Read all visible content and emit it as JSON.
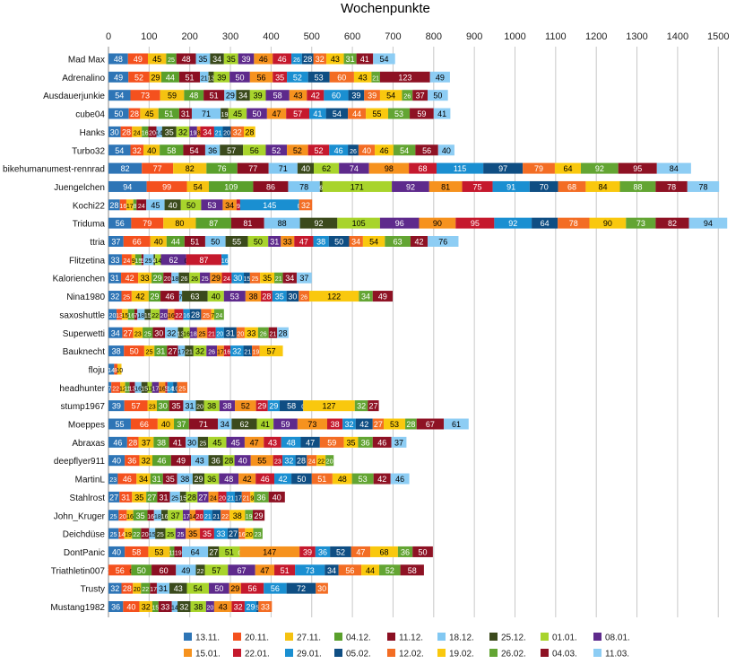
{
  "chart_data": {
    "type": "bar",
    "orientation": "horizontal",
    "stacked": true,
    "title": "Wochenpunkte",
    "xlabel": "",
    "ylabel": "",
    "xlim": [
      0,
      1550
    ],
    "xticks": [
      0,
      100,
      200,
      300,
      400,
      500,
      600,
      700,
      800,
      900,
      1000,
      1100,
      1200,
      1300,
      1400,
      1500
    ],
    "grid": true,
    "legend_position": "bottom",
    "series": [
      {
        "name": "13.11.",
        "color": "#2e75b6"
      },
      {
        "name": "20.11.",
        "color": "#f4511e"
      },
      {
        "name": "27.11.",
        "color": "#f5c211"
      },
      {
        "name": "04.12.",
        "color": "#5aa02c"
      },
      {
        "name": "11.12.",
        "color": "#8b0f22"
      },
      {
        "name": "18.12.",
        "color": "#82c8f2"
      },
      {
        "name": "25.12.",
        "color": "#3b4a1c"
      },
      {
        "name": "01.01.",
        "color": "#a8d42c"
      },
      {
        "name": "08.01.",
        "color": "#5e2a8c"
      },
      {
        "name": "15.01.",
        "color": "#f6921e"
      },
      {
        "name": "22.01.",
        "color": "#c5192d"
      },
      {
        "name": "29.01.",
        "color": "#1a8fd1"
      },
      {
        "name": "05.02.",
        "color": "#0f4e83"
      },
      {
        "name": "12.02.",
        "color": "#f36d24"
      },
      {
        "name": "19.02.",
        "color": "#f9c80e"
      },
      {
        "name": "26.02.",
        "color": "#63a533"
      },
      {
        "name": "04.03.",
        "color": "#8e1224"
      },
      {
        "name": "11.03.",
        "color": "#8dcdf4"
      }
    ],
    "categories": [
      {
        "name": "Mad Max",
        "values": [
          48,
          49,
          45,
          25,
          48,
          35,
          34,
          35,
          39,
          46,
          46,
          26,
          28,
          32,
          43,
          31,
          41,
          54
        ]
      },
      {
        "name": "Adrenalino",
        "values": [
          49,
          52,
          29,
          44,
          51,
          21,
          13,
          39,
          50,
          56,
          35,
          52,
          53,
          60,
          43,
          21,
          123,
          49
        ]
      },
      {
        "name": "Ausdauerjunkie",
        "values": [
          54,
          73,
          59,
          48,
          51,
          29,
          34,
          39,
          58,
          43,
          42,
          60,
          39,
          39,
          54,
          26,
          37,
          50
        ]
      },
      {
        "name": "cube04",
        "values": [
          50,
          28,
          45,
          51,
          31,
          71,
          19,
          45,
          50,
          47,
          57,
          41,
          54,
          44,
          55,
          53,
          59,
          41
        ]
      },
      {
        "name": "Hanks",
        "values": [
          30,
          28,
          24,
          16,
          20,
          14,
          35,
          32,
          19,
          8,
          34,
          21,
          20,
          32,
          28
        ]
      },
      {
        "name": "Turbo32",
        "values": [
          54,
          32,
          40,
          58,
          54,
          36,
          57,
          56,
          52,
          52,
          52,
          46,
          26,
          40,
          46,
          54,
          56,
          40
        ]
      },
      {
        "name": "bikehumanumest-rennrad",
        "values": [
          82,
          77,
          82,
          76,
          77,
          71,
          40,
          62,
          74,
          98,
          68,
          115,
          97,
          79,
          64,
          92,
          95,
          84
        ]
      },
      {
        "name": "Juengelchen",
        "values": [
          94,
          99,
          54,
          109,
          86,
          78,
          6,
          171,
          92,
          81,
          75,
          91,
          70,
          68,
          84,
          88,
          78,
          78
        ]
      },
      {
        "name": "Kochi22",
        "values": [
          28,
          16,
          17,
          8,
          24,
          45,
          40,
          50,
          53,
          34,
          9,
          145,
          0,
          32
        ]
      },
      {
        "name": "Triduma",
        "values": [
          56,
          79,
          80,
          87,
          81,
          88,
          92,
          105,
          96,
          90,
          95,
          92,
          64,
          78,
          90,
          73,
          82,
          94
        ]
      },
      {
        "name": "ttria",
        "values": [
          37,
          66,
          40,
          44,
          51,
          50,
          55,
          50,
          31,
          33,
          47,
          38,
          50,
          34,
          54,
          63,
          42,
          76
        ]
      },
      {
        "name": "Flitzetina",
        "values": [
          33,
          24,
          9,
          15,
          5,
          25,
          4,
          14,
          62,
          0,
          87,
          16
        ]
      },
      {
        "name": "Kalorienchen",
        "values": [
          31,
          42,
          33,
          29,
          20,
          18,
          26,
          26,
          25,
          29,
          24,
          30,
          15,
          25,
          35,
          21,
          34,
          37
        ]
      },
      {
        "name": "Nina1980",
        "values": [
          32,
          25,
          42,
          29,
          46,
          7,
          63,
          40,
          53,
          38,
          28,
          35,
          30,
          26,
          122,
          34,
          49
        ]
      },
      {
        "name": "saxoshuttle",
        "values": [
          20,
          13,
          15,
          16,
          7,
          18,
          15,
          22,
          20,
          16,
          22,
          16,
          28,
          25,
          7,
          24
        ]
      },
      {
        "name": "Superwetti",
        "values": [
          34,
          27,
          23,
          25,
          30,
          32,
          13,
          16,
          18,
          25,
          21,
          20,
          31,
          20,
          33,
          26,
          21,
          28
        ]
      },
      {
        "name": "Bauknecht",
        "values": [
          38,
          50,
          25,
          31,
          27,
          17,
          21,
          32,
          26,
          17,
          16,
          32,
          21,
          19,
          57
        ]
      },
      {
        "name": "floju",
        "values": [
          14,
          8,
          10
        ]
      },
      {
        "name": "headhunter",
        "values": [
          7,
          22,
          12,
          11,
          13,
          16,
          15,
          11,
          17,
          16,
          5,
          14,
          10,
          25
        ]
      },
      {
        "name": "stump1967",
        "values": [
          39,
          57,
          23,
          30,
          35,
          31,
          20,
          38,
          38,
          52,
          29,
          29,
          58,
          0,
          127,
          32,
          27
        ]
      },
      {
        "name": "Moeppes",
        "values": [
          55,
          66,
          40,
          37,
          71,
          34,
          62,
          41,
          59,
          73,
          38,
          32,
          42,
          27,
          53,
          28,
          67,
          61
        ]
      },
      {
        "name": "Abraxas",
        "values": [
          46,
          28,
          37,
          38,
          41,
          30,
          25,
          45,
          45,
          47,
          43,
          48,
          47,
          59,
          35,
          36,
          46,
          37
        ]
      },
      {
        "name": "deepflyer911",
        "values": [
          40,
          36,
          32,
          46,
          49,
          43,
          36,
          28,
          40,
          55,
          23,
          32,
          28,
          24,
          22,
          20
        ]
      },
      {
        "name": "MartinL",
        "values": [
          23,
          46,
          34,
          31,
          35,
          38,
          29,
          36,
          48,
          42,
          46,
          42,
          50,
          51,
          48,
          53,
          42,
          46
        ]
      },
      {
        "name": "Stahlrost",
        "values": [
          27,
          31,
          35,
          27,
          31,
          25,
          15,
          28,
          27,
          24,
          20,
          21,
          17,
          21,
          9,
          36,
          40
        ]
      },
      {
        "name": "John_Kruger",
        "values": [
          25,
          20,
          16,
          35,
          16,
          18,
          16,
          37,
          17,
          14,
          20,
          21,
          21,
          22,
          38,
          19,
          29
        ]
      },
      {
        "name": "Deichdüse",
        "values": [
          25,
          14,
          19,
          22,
          20,
          15,
          25,
          25,
          25,
          35,
          35,
          33,
          27,
          16,
          20,
          23
        ]
      },
      {
        "name": "DontPanic",
        "values": [
          40,
          58,
          53,
          11,
          19,
          64,
          27,
          51,
          0,
          147,
          39,
          36,
          52,
          47,
          68,
          36,
          50
        ]
      },
      {
        "name": "Triathletin007",
        "values": [
          0,
          56,
          0,
          50,
          60,
          49,
          22,
          57,
          67,
          47,
          51,
          73,
          34,
          56,
          44,
          52,
          58
        ]
      },
      {
        "name": "Trusty",
        "values": [
          32,
          28,
          20,
          22,
          17,
          31,
          43,
          54,
          50,
          29,
          56,
          56,
          72,
          30
        ]
      },
      {
        "name": "Mustang1982",
        "values": [
          36,
          40,
          32,
          15,
          33,
          14,
          32,
          38,
          20,
          43,
          32,
          29,
          5,
          33
        ]
      }
    ]
  }
}
